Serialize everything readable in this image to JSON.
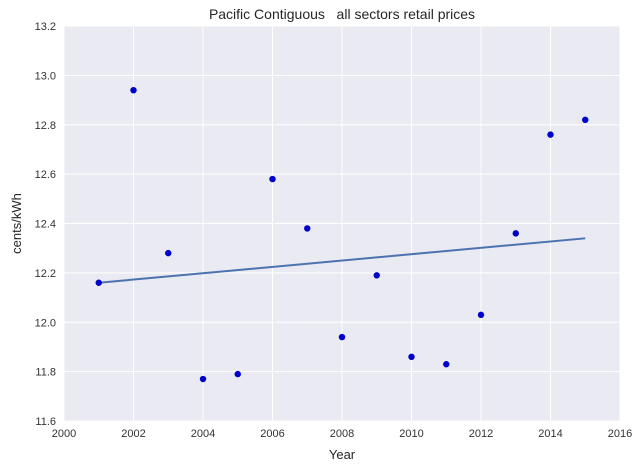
{
  "chart_data": {
    "type": "scatter",
    "title": "Pacific Contiguous   all sectors retail prices",
    "xlabel": "Year",
    "ylabel": "cents/kWh",
    "xlim": [
      2000,
      2016
    ],
    "ylim": [
      11.6,
      13.2
    ],
    "xticks": [
      2000,
      2002,
      2004,
      2006,
      2008,
      2010,
      2012,
      2014,
      2016
    ],
    "yticks": [
      11.6,
      11.8,
      12.0,
      12.2,
      12.4,
      12.6,
      12.8,
      13.0,
      13.2
    ],
    "xtick_labels": [
      "2000",
      "2002",
      "2004",
      "2006",
      "2008",
      "2010",
      "2012",
      "2014",
      "2016"
    ],
    "ytick_labels": [
      "11.6",
      "11.8",
      "12.0",
      "12.2",
      "12.4",
      "12.6",
      "12.8",
      "13.0",
      "13.2"
    ],
    "grid": true,
    "background": "#eaeaf2",
    "points_color": "#0000cc",
    "line_color": "#4c72b0",
    "points": {
      "x": [
        2001,
        2002,
        2003,
        2004,
        2005,
        2006,
        2007,
        2008,
        2009,
        2010,
        2011,
        2012,
        2013,
        2014,
        2015
      ],
      "y": [
        12.16,
        12.94,
        12.28,
        11.77,
        11.79,
        12.58,
        12.38,
        11.94,
        12.19,
        11.86,
        11.83,
        12.03,
        12.36,
        12.76,
        12.82
      ]
    },
    "trend_line": {
      "x": [
        2001,
        2015
      ],
      "y": [
        12.16,
        12.34
      ]
    }
  }
}
